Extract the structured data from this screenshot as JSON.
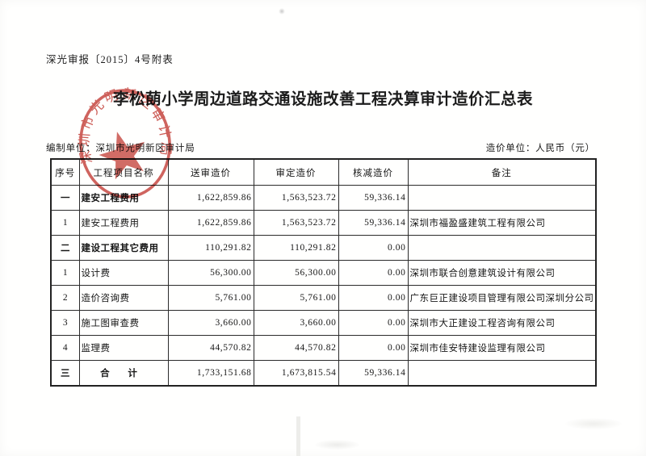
{
  "doc": {
    "doc_number": "深光审报〔2015〕4号附表",
    "title": "李松蓢小学周边道路交通设施改善工程决算审计造价汇总表",
    "prepared_by": "编制单位：深圳市光明新区审计局",
    "currency_unit": "造价单位：人民币（元）"
  },
  "stamp": {
    "text": "深圳市光明新区审计局",
    "color": "#c5453e"
  },
  "table": {
    "headers": [
      "序号",
      "工程项目名称",
      "送审造价",
      "审定造价",
      "核减造价",
      "备注"
    ],
    "rows": [
      {
        "no": "一",
        "name": "建安工程费用",
        "submitted": "1,622,859.86",
        "approved": "1,563,523.72",
        "reduced": "59,336.14",
        "remark": "",
        "category": true
      },
      {
        "no": "1",
        "name": "建安工程费用",
        "submitted": "1,622,859.86",
        "approved": "1,563,523.72",
        "reduced": "59,336.14",
        "remark": "深圳市福盈盛建筑工程有限公司"
      },
      {
        "no": "二",
        "name": "建设工程其它费用",
        "submitted": "110,291.82",
        "approved": "110,291.82",
        "reduced": "0.00",
        "remark": "",
        "category": true
      },
      {
        "no": "1",
        "name": "设计费",
        "submitted": "56,300.00",
        "approved": "56,300.00",
        "reduced": "0.00",
        "remark": "深圳市联合创意建筑设计有限公司"
      },
      {
        "no": "2",
        "name": "造价咨询费",
        "submitted": "5,761.00",
        "approved": "5,761.00",
        "reduced": "0.00",
        "remark": "广东巨正建设项目管理有限公司深圳分公司"
      },
      {
        "no": "3",
        "name": "施工图审查费",
        "submitted": "3,660.00",
        "approved": "3,660.00",
        "reduced": "0.00",
        "remark": "深圳市大正建设工程咨询有限公司"
      },
      {
        "no": "4",
        "name": "监理费",
        "submitted": "44,570.82",
        "approved": "44,570.82",
        "reduced": "0.00",
        "remark": "深圳市佳安特建设监理有限公司"
      },
      {
        "no": "三",
        "name": "合  计",
        "submitted": "1,733,151.68",
        "approved": "1,673,815.54",
        "reduced": "59,336.14",
        "remark": "",
        "category": true,
        "total": true
      }
    ]
  }
}
